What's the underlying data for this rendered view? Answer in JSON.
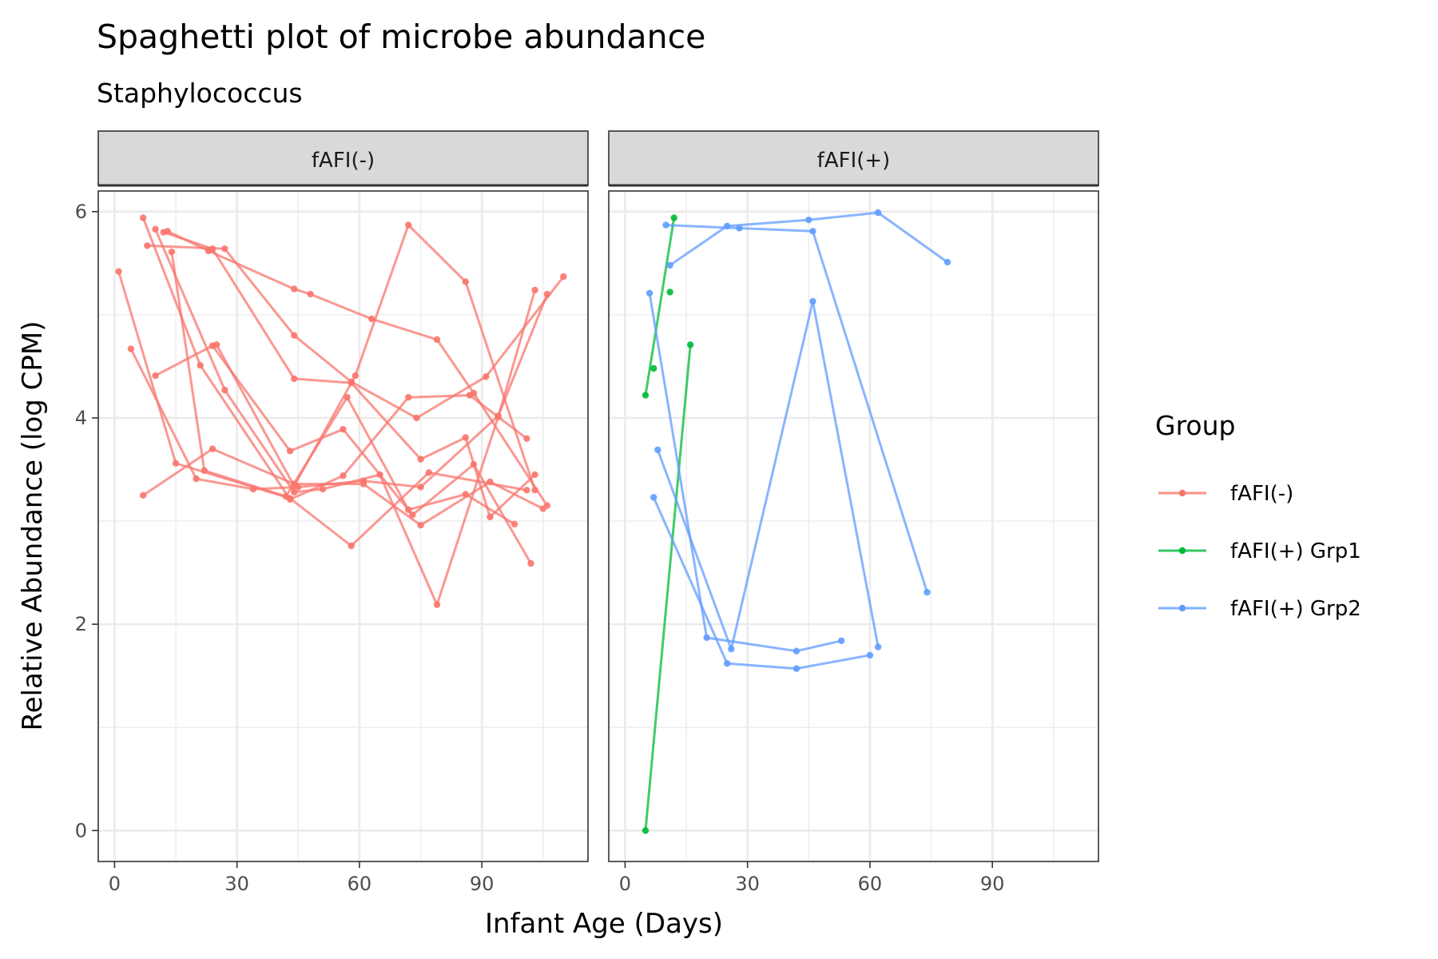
{
  "chart_data": {
    "type": "line",
    "title": "Spaghetti plot of microbe abundance",
    "subtitle": "Staphylococcus",
    "xlabel": "Infant Age (Days)",
    "ylabel": "Relative Abundance (log CPM)",
    "xlim": [
      -4,
      116
    ],
    "ylim": [
      -0.3,
      6.2
    ],
    "x_ticks": [
      0,
      30,
      60,
      90
    ],
    "y_ticks": [
      0,
      2,
      4,
      6
    ],
    "grid": true,
    "legend": {
      "title": "Group",
      "position": "right",
      "entries": [
        {
          "name": "fAFI(-)",
          "color": "#F8766D"
        },
        {
          "name": "fAFI(+) Grp1",
          "color": "#00BA38"
        },
        {
          "name": "fAFI(+) Grp2",
          "color": "#619CFF"
        }
      ]
    },
    "panels": [
      {
        "strip": "fAFI(-)",
        "lines": [
          {
            "group": "fAFI(-)",
            "points": [
              [
                1,
                5.42
              ],
              [
                15,
                3.56
              ],
              [
                43,
                3.22
              ],
              [
                58,
                2.76
              ],
              [
                77,
                3.47
              ],
              [
                101,
                3.3
              ]
            ]
          },
          {
            "group": "fAFI(-)",
            "points": [
              [
                4,
                4.67
              ],
              [
                20,
                3.41
              ],
              [
                34,
                3.31
              ],
              [
                45,
                3.33
              ],
              [
                61,
                3.39
              ],
              [
                75,
                3.33
              ],
              [
                94,
                4.02
              ],
              [
                106,
                5.2
              ]
            ]
          },
          {
            "group": "fAFI(-)",
            "points": [
              [
                7,
                5.94
              ],
              [
                21,
                4.51
              ],
              [
                43,
                3.21
              ],
              [
                56,
                3.44
              ],
              [
                72,
                4.2
              ],
              [
                87,
                4.22
              ],
              [
                101,
                3.8
              ]
            ]
          },
          {
            "group": "fAFI(-)",
            "points": [
              [
                7,
                3.25
              ],
              [
                24,
                3.7
              ],
              [
                44,
                3.36
              ],
              [
                61,
                3.36
              ],
              [
                75,
                2.96
              ],
              [
                92,
                3.38
              ],
              [
                105,
                3.12
              ]
            ]
          },
          {
            "group": "fAFI(-)",
            "points": [
              [
                8,
                5.67
              ],
              [
                27,
                5.64
              ],
              [
                44,
                4.8
              ],
              [
                58,
                4.35
              ],
              [
                74,
                4.0
              ],
              [
                91,
                4.4
              ],
              [
                110,
                5.37
              ]
            ]
          },
          {
            "group": "fAFI(-)",
            "points": [
              [
                10,
                4.41
              ],
              [
                24,
                4.7
              ],
              [
                43,
                3.68
              ],
              [
                56,
                3.89
              ],
              [
                73,
                3.06
              ],
              [
                88,
                3.55
              ],
              [
                102,
                2.59
              ]
            ]
          },
          {
            "group": "fAFI(-)",
            "points": [
              [
                10,
                5.83
              ],
              [
                27,
                4.27
              ],
              [
                44,
                3.28
              ],
              [
                51,
                3.31
              ],
              [
                65,
                3.45
              ],
              [
                79,
                2.19
              ],
              [
                94,
                4.01
              ],
              [
                103,
                5.24
              ]
            ]
          },
          {
            "group": "fAFI(-)",
            "points": [
              [
                12,
                5.8
              ],
              [
                24,
                5.64
              ],
              [
                44,
                4.38
              ],
              [
                58,
                4.34
              ],
              [
                75,
                3.6
              ],
              [
                86,
                3.81
              ],
              [
                92,
                3.04
              ],
              [
                103,
                3.45
              ]
            ]
          },
          {
            "group": "fAFI(-)",
            "points": [
              [
                13,
                5.81
              ],
              [
                23,
                5.62
              ],
              [
                44,
                5.25
              ],
              [
                48,
                5.2
              ],
              [
                63,
                4.96
              ],
              [
                79,
                4.76
              ],
              [
                88,
                4.24
              ],
              [
                106,
                3.15
              ]
            ]
          },
          {
            "group": "fAFI(-)",
            "points": [
              [
                14,
                5.61
              ],
              [
                22,
                3.49
              ],
              [
                42,
                3.24
              ],
              [
                57,
                4.2
              ],
              [
                72,
                3.11
              ],
              [
                86,
                3.26
              ],
              [
                98,
                2.97
              ]
            ]
          },
          {
            "group": "fAFI(-)",
            "points": [
              [
                25,
                4.71
              ],
              [
                44,
                3.34
              ],
              [
                59,
                4.41
              ],
              [
                72,
                5.87
              ],
              [
                86,
                5.32
              ],
              [
                103,
                3.3
              ]
            ]
          }
        ]
      },
      {
        "strip": "fAFI(+)",
        "lines": [
          {
            "group": "fAFI(+) Grp1",
            "points": [
              [
                5,
                4.22
              ],
              [
                12,
                5.94
              ]
            ]
          },
          {
            "group": "fAFI(+) Grp1",
            "points": [
              [
                5,
                0.0
              ],
              [
                16,
                4.71
              ]
            ]
          },
          {
            "group": "fAFI(+) Grp1",
            "points": [
              [
                7,
                4.48
              ]
            ]
          },
          {
            "group": "fAFI(+) Grp1",
            "points": [
              [
                11,
                5.22
              ]
            ]
          },
          {
            "group": "fAFI(+) Grp2",
            "points": [
              [
                10,
                5.87
              ],
              [
                28,
                5.84
              ],
              [
                46,
                5.81
              ],
              [
                74,
                2.31
              ]
            ]
          },
          {
            "group": "fAFI(+) Grp2",
            "points": [
              [
                11,
                5.48
              ],
              [
                25,
                5.86
              ],
              [
                45,
                5.92
              ],
              [
                62,
                5.99
              ],
              [
                79,
                5.51
              ]
            ]
          },
          {
            "group": "fAFI(+) Grp2",
            "points": [
              [
                6,
                5.21
              ],
              [
                20,
                1.87
              ],
              [
                42,
                1.74
              ],
              [
                53,
                1.84
              ]
            ]
          },
          {
            "group": "fAFI(+) Grp2",
            "points": [
              [
                8,
                3.69
              ],
              [
                26,
                1.76
              ],
              [
                46,
                5.13
              ],
              [
                62,
                1.78
              ]
            ]
          },
          {
            "group": "fAFI(+) Grp2",
            "points": [
              [
                7,
                3.23
              ],
              [
                25,
                1.62
              ],
              [
                42,
                1.57
              ],
              [
                60,
                1.7
              ]
            ]
          }
        ]
      }
    ]
  }
}
